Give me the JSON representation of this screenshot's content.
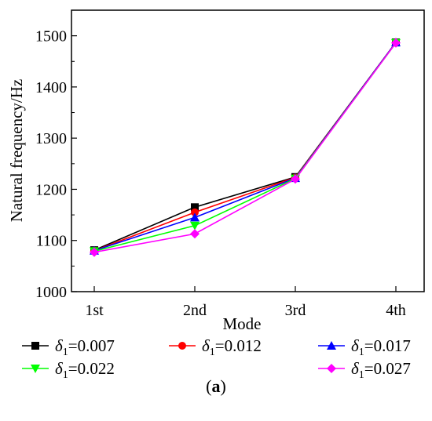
{
  "chart_data": {
    "type": "line",
    "categories": [
      "1st",
      "2nd",
      "3rd",
      "4th"
    ],
    "xlabel": "Mode",
    "ylabel": "Natural frequency/Hz",
    "ylim": [
      1000,
      1550
    ],
    "yticks": [
      1000,
      1100,
      1200,
      1300,
      1400,
      1500
    ],
    "grid": false,
    "legend_placement": "bottom",
    "series": [
      {
        "name": "δ1=0.007",
        "symbol": "δ",
        "subscript": "1",
        "value_text": "=0.007",
        "color": "#000000",
        "marker": "square",
        "values": [
          1081,
          1165,
          1224,
          1487
        ]
      },
      {
        "name": "δ1=0.012",
        "symbol": "δ",
        "subscript": "1",
        "value_text": "=0.012",
        "color": "#ff0000",
        "marker": "circle",
        "values": [
          1080,
          1155,
          1223,
          1487
        ]
      },
      {
        "name": "δ1=0.017",
        "symbol": "δ",
        "subscript": "1",
        "value_text": "=0.017",
        "color": "#0000ff",
        "marker": "triangle-up",
        "values": [
          1080,
          1145,
          1222,
          1487
        ]
      },
      {
        "name": "δ1=0.022",
        "symbol": "δ",
        "subscript": "1",
        "value_text": "=0.022",
        "color": "#00ff00",
        "marker": "triangle-down",
        "values": [
          1079,
          1129,
          1221,
          1486
        ]
      },
      {
        "name": "δ1=0.027",
        "symbol": "δ",
        "subscript": "1",
        "value_text": "=0.027",
        "color": "#ff00ff",
        "marker": "diamond",
        "values": [
          1077,
          1113,
          1220,
          1486
        ]
      }
    ]
  },
  "caption": {
    "open": "(",
    "letter": "a",
    "close": ")"
  }
}
